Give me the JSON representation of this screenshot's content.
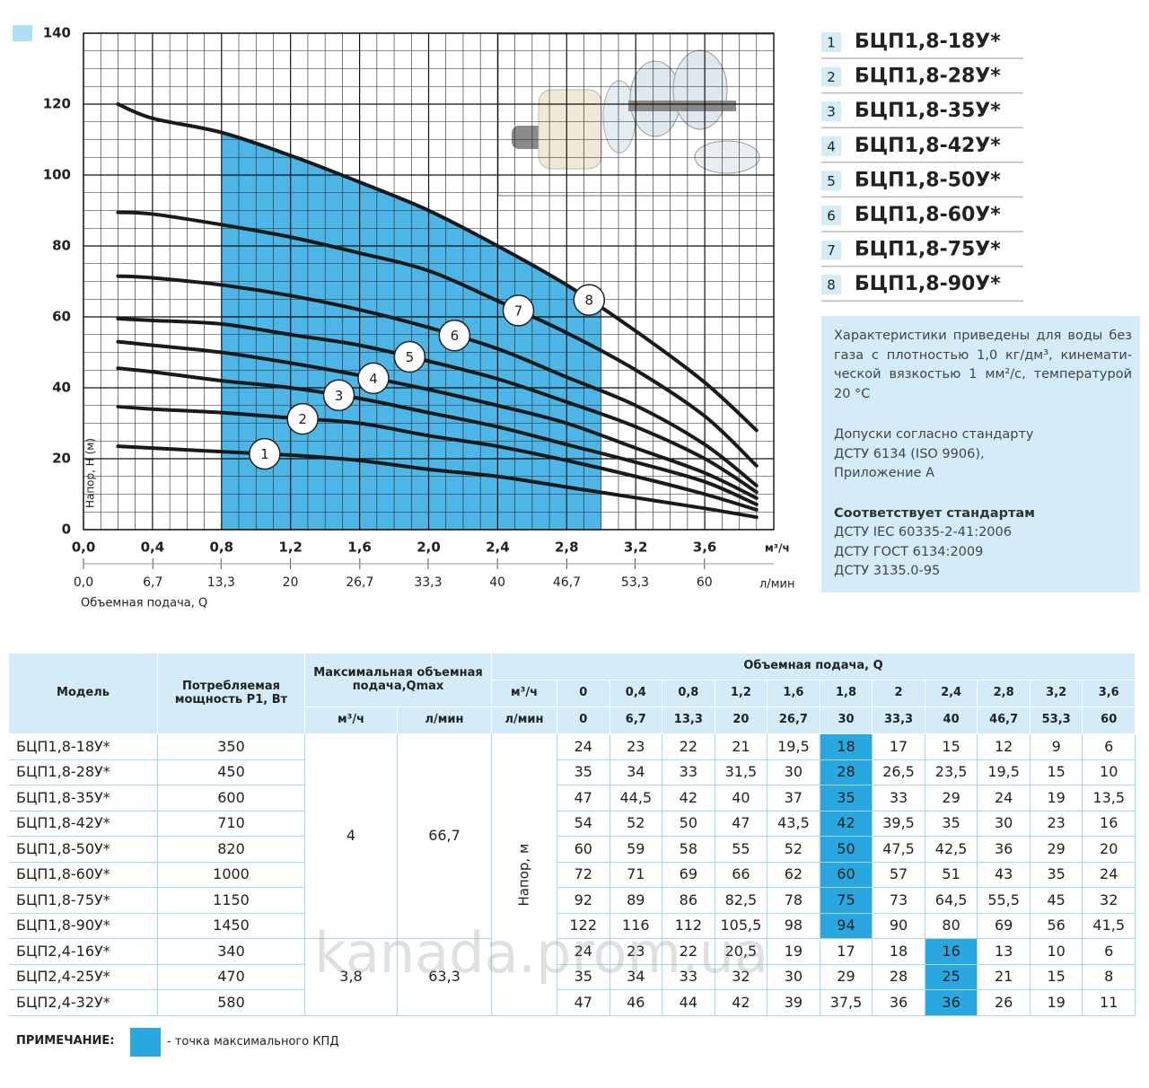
{
  "chart_data": {
    "type": "line",
    "y_label": "Напор, H (м)",
    "x_label": "Объемная подача, Q",
    "x_unit": "м³/ч",
    "x2_unit": "л/мин",
    "x": [
      0.2,
      0.4,
      0.8,
      1.2,
      1.6,
      2.0,
      2.4,
      2.8,
      3.2,
      3.6,
      3.9
    ],
    "series": [
      {
        "name": "БЦП1,8-18У*",
        "marker": "1",
        "color": "#1a1a1a",
        "values": [
          23.5,
          23,
          22,
          21,
          19.5,
          17,
          15,
          12,
          9,
          6,
          3.5
        ]
      },
      {
        "name": "БЦП1,8-28У*",
        "marker": "2",
        "color": "#1a1a1a",
        "values": [
          34.7,
          34,
          33,
          31.5,
          30,
          26.5,
          23.5,
          19.5,
          15,
          10,
          5.6
        ]
      },
      {
        "name": "БЦП1,8-35У*",
        "marker": "3",
        "color": "#1a1a1a",
        "values": [
          45.5,
          44.5,
          42,
          40,
          37,
          33,
          29,
          24,
          19,
          13.5,
          7.1
        ]
      },
      {
        "name": "БЦП1,8-42У*",
        "marker": "4",
        "color": "#1a1a1a",
        "values": [
          53,
          52,
          50,
          47,
          43.5,
          39.5,
          35,
          30,
          23,
          16,
          8.9
        ]
      },
      {
        "name": "БЦП1,8-50У*",
        "marker": "5",
        "color": "#1a1a1a",
        "values": [
          59.5,
          59,
          58,
          55,
          52,
          47.5,
          42.5,
          36,
          29,
          20,
          10.6
        ]
      },
      {
        "name": "БЦП1,8-60У*",
        "marker": "6",
        "color": "#1a1a1a",
        "values": [
          71.5,
          71,
          69,
          66,
          62,
          57,
          51,
          43,
          35,
          24,
          12.4
        ]
      },
      {
        "name": "БЦП1,8-75У*",
        "marker": "7",
        "color": "#1a1a1a",
        "values": [
          89.5,
          89,
          86,
          82.5,
          78,
          73,
          64.5,
          55.5,
          45,
          32,
          18
        ]
      },
      {
        "name": "БЦП1,8-90У*",
        "marker": "8",
        "color": "#1a1a1a",
        "values": [
          120,
          116,
          112,
          105.5,
          98,
          90,
          80,
          69,
          56,
          41.5,
          28
        ]
      }
    ],
    "xlim": [
      0,
      4
    ],
    "xticks": [
      {
        "value": 0,
        "label": "0,0"
      },
      {
        "value": 0.4,
        "label": "0,4"
      },
      {
        "value": 0.8,
        "label": "0,8"
      },
      {
        "value": 1.2,
        "label": "1,2"
      },
      {
        "value": 1.6,
        "label": "1,6"
      },
      {
        "value": 2.0,
        "label": "2,0"
      },
      {
        "value": 2.4,
        "label": "2,4"
      },
      {
        "value": 2.8,
        "label": "2,8"
      },
      {
        "value": 3.2,
        "label": "3,2"
      },
      {
        "value": 3.6,
        "label": "3,6"
      }
    ],
    "x2lim": [
      0,
      66.7
    ],
    "x2ticks": [
      {
        "value": 0,
        "label": "0,0"
      },
      {
        "value": 6.7,
        "label": "6,7"
      },
      {
        "value": 13.3,
        "label": "13,3"
      },
      20,
      {
        "value": 26.7,
        "label": "26,7"
      },
      {
        "value": 33.3,
        "label": "33,3"
      },
      40,
      {
        "value": 46.7,
        "label": "46,7"
      },
      {
        "value": 53.3,
        "label": "53,3"
      },
      60
    ],
    "ylim": [
      0,
      140
    ],
    "yticks": [
      0,
      20,
      40,
      60,
      80,
      100,
      120,
      140
    ],
    "grid": true,
    "shaded_range": [
      0.8,
      3.0
    ],
    "shade_color": "#4db6e6"
  },
  "notes": {
    "paragraph1": [
      "Характеристики приведены для воды без",
      "газа с плотностью 1,0 кг/дм³, кинемати-",
      "ческой вязкостью 1 мм²/с, температурой",
      "20 °C"
    ],
    "paragraph2": [
      "Допуски согласно стандарту",
      "ДСТУ 6134 (ISO 9906),",
      "Приложение А"
    ],
    "heading": "Соответствует стандартам",
    "paragraph3": [
      "ДСТУ IEC 60335-2-41:2006",
      "ДСТУ ГОСТ 6134:2009",
      "ДСТУ 3135.0-95"
    ]
  },
  "table": {
    "headers": {
      "model": "Модель",
      "power": "Потребляемая мощность P1, Вт",
      "qmax": "Максимальная объемная подача,Qmax",
      "flow": "Объемная подача, Q",
      "unit_m3h": "м³/ч",
      "unit_lmin": "л/мин",
      "head": "Напор, м"
    },
    "flow_m3h": [
      "0",
      "0,4",
      "0,8",
      "1,2",
      "1,6",
      "1,8",
      "2",
      "2,4",
      "2,8",
      "3,2",
      "3,6"
    ],
    "flow_lmin": [
      "0",
      "6,7",
      "13,3",
      "20",
      "26,7",
      "30",
      "33,3",
      "40",
      "46,7",
      "53,3",
      "60"
    ],
    "groups": [
      {
        "qmax_m3h": "4",
        "qmax_lmin": "66,7",
        "rows": [
          {
            "model": "БЦП1,8-18У*",
            "power": "350",
            "best": 5,
            "values": [
              "24",
              "23",
              "22",
              "21",
              "19,5",
              "18",
              "17",
              "15",
              "12",
              "9",
              "6"
            ]
          },
          {
            "model": "БЦП1,8-28У*",
            "power": "450",
            "best": 5,
            "values": [
              "35",
              "34",
              "33",
              "31,5",
              "30",
              "28",
              "26,5",
              "23,5",
              "19,5",
              "15",
              "10"
            ]
          },
          {
            "model": "БЦП1,8-35У*",
            "power": "600",
            "best": 5,
            "values": [
              "47",
              "44,5",
              "42",
              "40",
              "37",
              "35",
              "33",
              "29",
              "24",
              "19",
              "13,5"
            ]
          },
          {
            "model": "БЦП1,8-42У*",
            "power": "710",
            "best": 5,
            "values": [
              "54",
              "52",
              "50",
              "47",
              "43,5",
              "42",
              "39,5",
              "35",
              "30",
              "23",
              "16"
            ]
          },
          {
            "model": "БЦП1,8-50У*",
            "power": "820",
            "best": 5,
            "values": [
              "60",
              "59",
              "58",
              "55",
              "52",
              "50",
              "47,5",
              "42,5",
              "36",
              "29",
              "20"
            ]
          },
          {
            "model": "БЦП1,8-60У*",
            "power": "1000",
            "best": 5,
            "values": [
              "72",
              "71",
              "69",
              "66",
              "62",
              "60",
              "57",
              "51",
              "43",
              "35",
              "24"
            ]
          },
          {
            "model": "БЦП1,8-75У*",
            "power": "1150",
            "best": 5,
            "values": [
              "92",
              "89",
              "86",
              "82,5",
              "78",
              "75",
              "73",
              "64,5",
              "55,5",
              "45",
              "32"
            ]
          },
          {
            "model": "БЦП1,8-90У*",
            "power": "1450",
            "best": 5,
            "values": [
              "122",
              "116",
              "112",
              "105,5",
              "98",
              "94",
              "90",
              "80",
              "69",
              "56",
              "41,5"
            ]
          }
        ]
      },
      {
        "qmax_m3h": "3,8",
        "qmax_lmin": "63,3",
        "rows": [
          {
            "model": "БЦП2,4-16У*",
            "power": "340",
            "best": 7,
            "values": [
              "24",
              "23",
              "22",
              "20,5",
              "19",
              "17",
              "18",
              "16",
              "13",
              "10",
              "6"
            ]
          },
          {
            "model": "БЦП2,4-25У*",
            "power": "470",
            "best": 7,
            "values": [
              "35",
              "34",
              "33",
              "32",
              "30",
              "29",
              "28",
              "25",
              "21",
              "15",
              "8"
            ]
          },
          {
            "model": "БЦП2,4-32У*",
            "power": "580",
            "best": 7,
            "values": [
              "47",
              "46",
              "44",
              "42",
              "39",
              "37,5",
              "36",
              "36",
              "26",
              "19",
              "11"
            ]
          }
        ]
      }
    ]
  },
  "note": {
    "label": "ПРИМЕЧАНИЕ:",
    "text": "- точка максимального КПД"
  },
  "watermark": "kanada.prom.ua"
}
